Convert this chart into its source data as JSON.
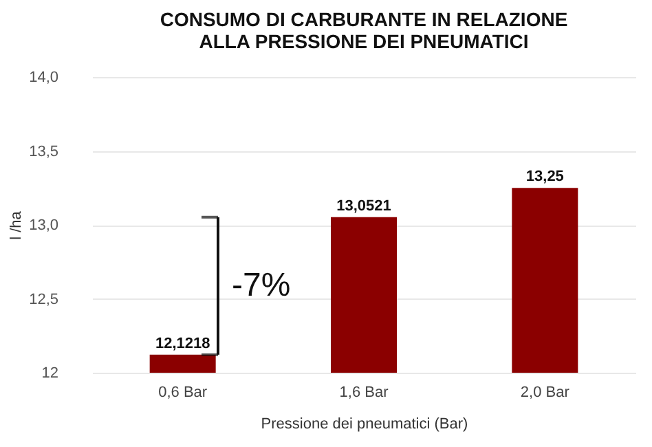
{
  "chart_data": {
    "type": "bar",
    "title": "CONSUMO DI CARBURANTE IN RELAZIONE\nALLA PRESSIONE DEI PNEUMATICI",
    "xlabel": "Pressione dei pneumatici (Bar)",
    "ylabel": "l /ha",
    "categories": [
      "0,6 Bar",
      "1,6 Bar",
      "2,0 Bar"
    ],
    "values": [
      12.1218,
      13.0521,
      13.25
    ],
    "value_labels": [
      "12,1218",
      "13,0521",
      "13,25"
    ],
    "color": "#8b0000",
    "ylim": [
      12,
      14
    ],
    "yticks": [
      {
        "value": 12,
        "label": "12"
      },
      {
        "value": 12.5,
        "label": "12,5"
      },
      {
        "value": 13,
        "label": "13,0"
      },
      {
        "value": 13.5,
        "label": "13,5"
      },
      {
        "value": 14,
        "label": "14,0"
      }
    ],
    "grid": "y",
    "annotations": [
      "-7%"
    ]
  }
}
